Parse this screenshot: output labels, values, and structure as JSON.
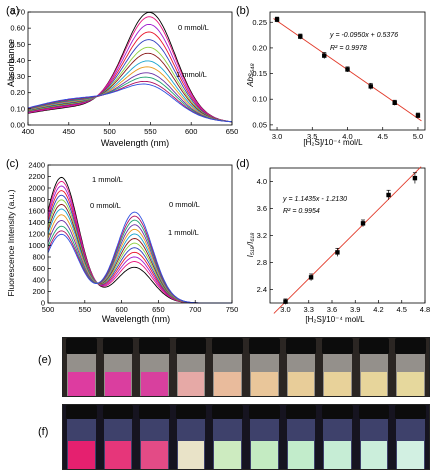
{
  "panel_labels": {
    "a": "(a)",
    "b": "(b)",
    "c": "(c)",
    "d": "(d)",
    "e": "(e)",
    "f": "(f)"
  },
  "chart_data": [
    {
      "id": "a",
      "type": "line",
      "xlabel": "Wavelength (nm)",
      "ylabel": "Absorbance",
      "xlim": [
        400,
        650
      ],
      "ylim": [
        0,
        0.7
      ],
      "xticks": [
        400,
        450,
        500,
        550,
        600,
        650
      ],
      "yticks": [
        0,
        0.1,
        0.2,
        0.3,
        0.4,
        0.5,
        0.6,
        0.7
      ],
      "annotations": [
        "0 mmol/L",
        "1 mmol/L"
      ],
      "series_count": 13,
      "peak_wavelength": 550,
      "peak_values": [
        0.63,
        0.6,
        0.55,
        0.5,
        0.45,
        0.4,
        0.36,
        0.31,
        0.27,
        0.23,
        0.2,
        0.17,
        0.15
      ],
      "colors": [
        "#000000",
        "#e8157d",
        "#a01cd0",
        "#e8162b",
        "#2f3fbf",
        "#8fd040",
        "#8b1a1a",
        "#1aa4cf",
        "#e89a20",
        "#6b2fa5",
        "#20a070",
        "#b01060",
        "#3050e0"
      ]
    },
    {
      "id": "b",
      "type": "scatter",
      "xlabel": "[H₂S]/10⁻⁴ mol/L",
      "ylabel": "Abs₅₄₈",
      "xlim": [
        2.9,
        5.1
      ],
      "ylim": [
        0.04,
        0.27
      ],
      "xticks": [
        3.0,
        3.5,
        4.0,
        4.5,
        5.0
      ],
      "yticks": [
        0.05,
        0.1,
        0.15,
        0.2,
        0.25
      ],
      "x": [
        3.0,
        3.33,
        3.67,
        4.0,
        4.33,
        4.67,
        5.0
      ],
      "y": [
        0.255,
        0.222,
        0.185,
        0.158,
        0.125,
        0.093,
        0.068
      ],
      "error": [
        0.005,
        0.005,
        0.006,
        0.005,
        0.006,
        0.005,
        0.005
      ],
      "fit": {
        "slope": -0.095,
        "intercept": 0.5376
      },
      "equation": "y = -0.0950x + 0.5376",
      "r2": "R² = 0.9978"
    },
    {
      "id": "c",
      "type": "line",
      "xlabel": "Wavelength (nm)",
      "ylabel": "Fluorescence Intensity (a.u.)",
      "xlim": [
        500,
        750
      ],
      "ylim": [
        0,
        2400
      ],
      "xticks": [
        500,
        550,
        600,
        650,
        700,
        750
      ],
      "yticks": [
        0,
        200,
        400,
        600,
        800,
        1000,
        1200,
        1400,
        1600,
        1800,
        2000,
        2200,
        2400
      ],
      "annotations": [
        "1 mmol/L",
        "0 mmol/L",
        "0 mmol/L",
        "1 mmol/L"
      ],
      "series_count": 13,
      "peak1_wavelength": 518,
      "peak2_wavelength": 618,
      "peak1_values": [
        2150,
        2080,
        2000,
        1920,
        1840,
        1760,
        1680,
        1600,
        1500,
        1400,
        1300,
        1220,
        1160
      ],
      "peak2_values": [
        600,
        700,
        780,
        860,
        940,
        1020,
        1100,
        1180,
        1260,
        1340,
        1420,
        1490,
        1560
      ],
      "colors": [
        "#000000",
        "#e8157d",
        "#a01cd0",
        "#e8162b",
        "#2f3fbf",
        "#8fd040",
        "#8b1a1a",
        "#1aa4cf",
        "#e89a20",
        "#6b2fa5",
        "#20a070",
        "#b01060",
        "#3050e0"
      ]
    },
    {
      "id": "d",
      "type": "scatter",
      "xlabel": "[H₂S]/10⁻⁴ mol/L",
      "ylabel": "I₅₁₈/I₆₁₈",
      "xlim": [
        2.8,
        4.8
      ],
      "ylim": [
        2.2,
        4.2
      ],
      "xticks": [
        3.0,
        3.3,
        3.6,
        3.9,
        4.2,
        4.5,
        4.8
      ],
      "yticks": [
        2.4,
        2.8,
        3.2,
        3.6,
        4.0
      ],
      "x": [
        3.0,
        3.33,
        3.67,
        4.0,
        4.33,
        4.67
      ],
      "y": [
        2.22,
        2.58,
        2.95,
        3.38,
        3.8,
        4.05
      ],
      "error": [
        0.04,
        0.05,
        0.06,
        0.05,
        0.07,
        0.08
      ],
      "fit": {
        "slope": 1.1435,
        "intercept": -1.213
      },
      "equation": "y = 1.1435x - 1.2130",
      "r2": "R² = 0.9954"
    }
  ],
  "photos": {
    "e": {
      "vials": [
        "#dd3ca0",
        "#da3e9f",
        "#d8409e",
        "#e6a9a6",
        "#e9bb9c",
        "#e9c69a",
        "#e8cd99",
        "#e8d29a",
        "#e7d59b",
        "#e6d89d"
      ]
    },
    "f": {
      "vials": [
        "#e5206f",
        "#e6367a",
        "#e34b86",
        "#e9e3c8",
        "#cdebc0",
        "#c4ebc2",
        "#c2eccb",
        "#c6edd5",
        "#cbeedb",
        "#d2f0e2"
      ]
    }
  }
}
